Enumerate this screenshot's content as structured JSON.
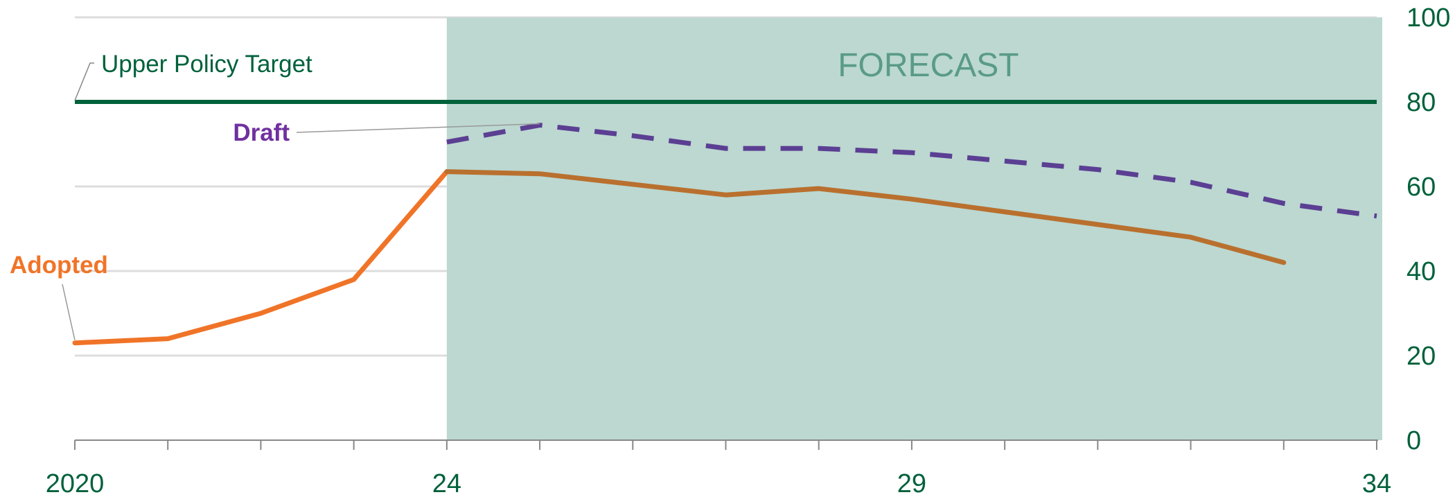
{
  "chart_data": {
    "type": "line",
    "x_domain": [
      2020,
      2034
    ],
    "ylim": [
      0,
      100
    ],
    "y_ticks": [
      0,
      20,
      40,
      60,
      80,
      100
    ],
    "x_tick_years": [
      2020,
      2021,
      2022,
      2023,
      2024,
      2025,
      2026,
      2027,
      2028,
      2029,
      2030,
      2031,
      2032,
      2033,
      2034
    ],
    "x_tick_labels": [
      {
        "x": 2020,
        "label": "2020"
      },
      {
        "x": 2024,
        "label": "24"
      },
      {
        "x": 2029,
        "label": "29"
      },
      {
        "x": 2034,
        "label": "34"
      }
    ],
    "grid": true,
    "forecast_region": {
      "from": 2024,
      "to": 2034,
      "label": "FORECAST"
    },
    "reference_line": {
      "name": "Upper Policy Target",
      "value": 80
    },
    "series": [
      {
        "name": "Adopted",
        "style": "solid",
        "x": [
          2020,
          2021,
          2022,
          2023,
          2024,
          2025,
          2026,
          2027,
          2028,
          2029,
          2030,
          2031,
          2032,
          2033
        ],
        "values": [
          23,
          24,
          30,
          38,
          63.5,
          63,
          60.5,
          58,
          59.5,
          57,
          54,
          51,
          48,
          42
        ]
      },
      {
        "name": "Draft",
        "style": "dashed",
        "x": [
          2024,
          2025,
          2026,
          2027,
          2028,
          2029,
          2030,
          2031,
          2032,
          2033,
          2034
        ],
        "values": [
          70.5,
          74.5,
          72,
          69,
          69,
          68,
          66,
          64,
          61,
          56,
          53
        ]
      }
    ],
    "colors": {
      "adopted": "#f07428",
      "adopted_in_forecast": "#b9702e",
      "draft": "#5b3f93",
      "draft_label": "#7030a0",
      "target": "#00613b",
      "axis_text": "#00613b",
      "forecast_fill": "#bcd8d1",
      "forecast_text": "#5a9b86",
      "grid": "#dddddd"
    }
  }
}
